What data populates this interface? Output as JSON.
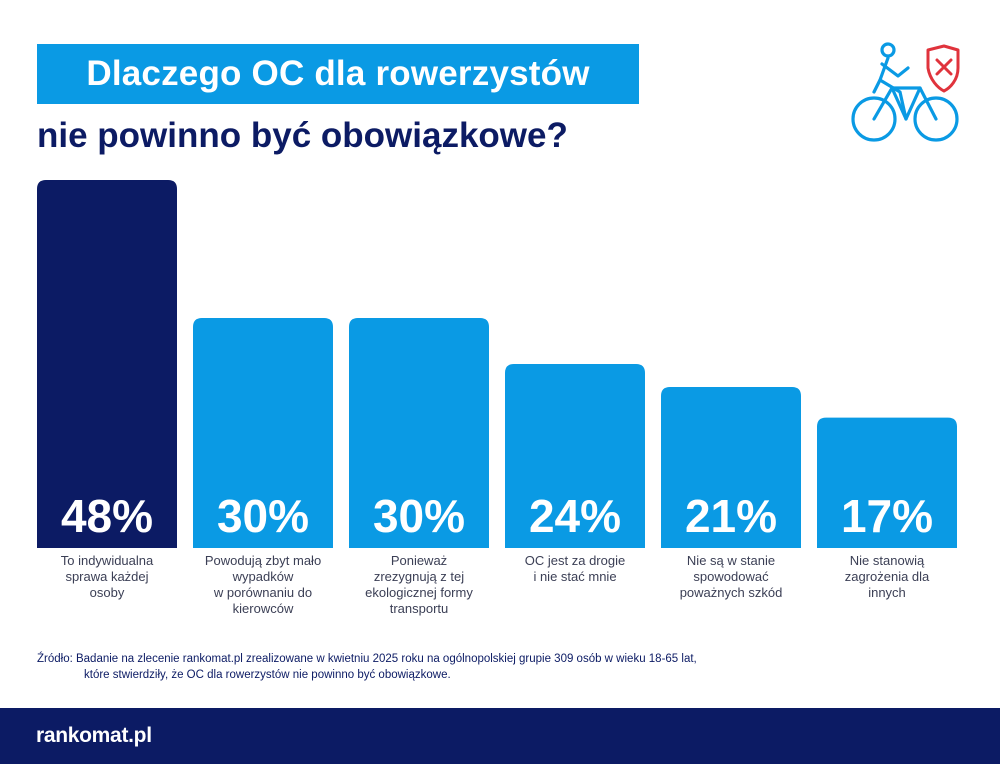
{
  "colors": {
    "accent": "#0a9ae4",
    "navy": "#0c1b64",
    "highlight": "#0c1b64",
    "bar": "#0a9ae4"
  },
  "header": {
    "title_line1": "Dlaczego OC dla rowerzystów",
    "title_line2": "nie powinno być obowiązkowe?",
    "icon": "cyclist-shield-x-icon"
  },
  "chart_data": {
    "type": "bar",
    "categories": [
      "To indywidualna\nsprawa każdej\nosoby",
      "Powodują zbyt mało\nwypadków\nw porównaniu do\nkierowców",
      "Ponieważ\nzrezygnują z tej\nekologicznej formy\ntransportu",
      "OC jest za drogie\ni nie stać mnie",
      "Nie są w stanie\nspowodować\npoważnych szkód",
      "Nie stanowią\nzagrożenia dla\ninnych"
    ],
    "values": [
      48,
      30,
      30,
      24,
      21,
      17
    ],
    "value_labels": [
      "48%",
      "30%",
      "30%",
      "24%",
      "21%",
      "17%"
    ],
    "highlighted_index": 0,
    "ylim": [
      0,
      48
    ],
    "grid": false,
    "legend": "none"
  },
  "source": {
    "line1": "Źródło: Badanie na zlecenie rankomat.pl zrealizowane w kwietniu 2025 roku na ogólnopolskiej grupie 309 osób w wieku 18-65 lat,",
    "line2": "które stwierdziły, że OC dla rowerzystów nie powinno być obowiązkowe."
  },
  "footer": {
    "logo": "rankomat.pl"
  }
}
